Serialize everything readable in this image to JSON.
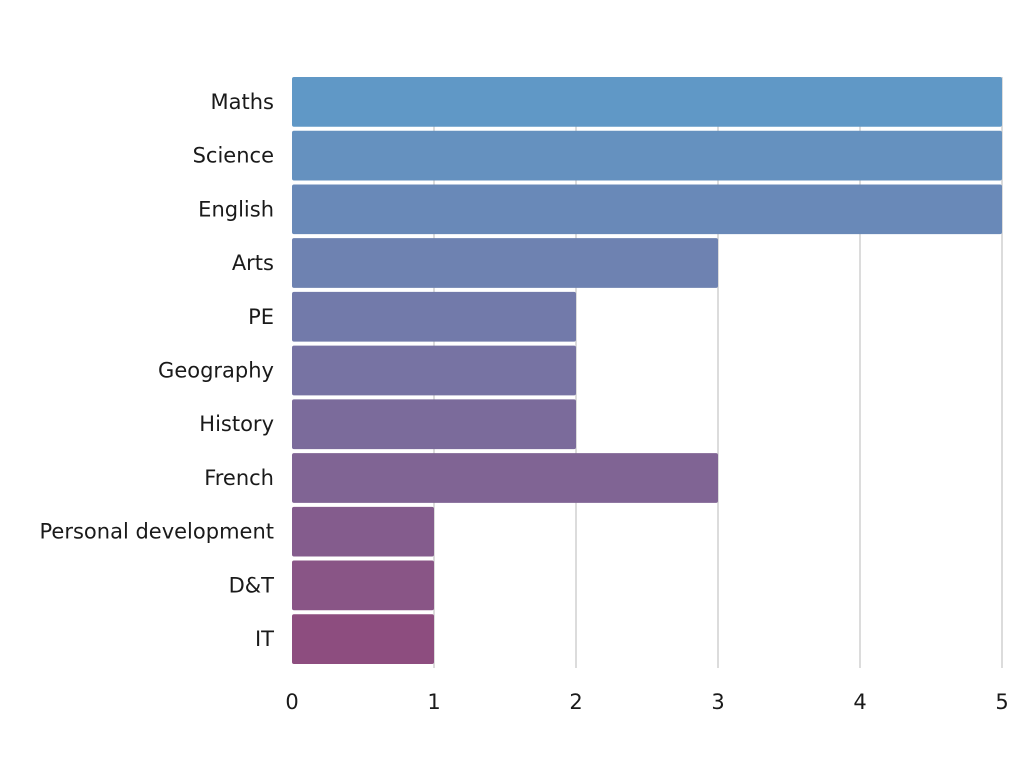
{
  "chart_data": {
    "type": "bar",
    "orientation": "horizontal",
    "categories": [
      "Maths",
      "Science",
      "English",
      "Arts",
      "PE",
      "Geography",
      "History",
      "French",
      "Personal development",
      "D&T",
      "IT"
    ],
    "values": [
      5,
      5,
      5,
      3,
      2,
      2,
      2,
      3,
      1,
      1,
      1
    ],
    "x_ticks": [
      "0",
      "1",
      "2",
      "3",
      "4",
      "5"
    ],
    "xlim": [
      0,
      5
    ],
    "title": "",
    "xlabel": "",
    "ylabel": "",
    "grid": "vertical",
    "legend": "none",
    "colors": {
      "bar_start": "#6098c6",
      "bar_end": "#8d4d7f",
      "grid": "#d0d0d0",
      "text": "#1a1a1a"
    }
  }
}
